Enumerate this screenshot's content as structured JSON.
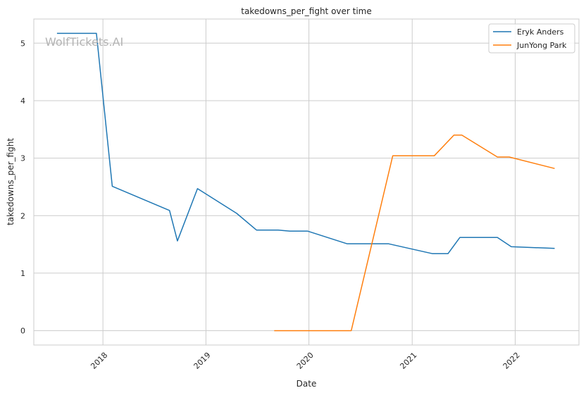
{
  "watermark": "WolfTickets.AI",
  "chart_data": {
    "type": "line",
    "title": "takedowns_per_fight over time",
    "xlabel": "Date",
    "ylabel": "takedowns_per_fight",
    "xlim": [
      "2017-05-01",
      "2022-08-15"
    ],
    "ylim": [
      -0.25,
      5.42
    ],
    "x_ticks": [
      "2018-01-01",
      "2019-01-01",
      "2020-01-01",
      "2021-01-01",
      "2022-01-01"
    ],
    "x_tick_labels": [
      "2018",
      "2019",
      "2020",
      "2021",
      "2022"
    ],
    "y_ticks": [
      0,
      1,
      2,
      3,
      4,
      5
    ],
    "y_tick_labels": [
      "0",
      "1",
      "2",
      "3",
      "4",
      "5"
    ],
    "grid": true,
    "legend_position": "top-right",
    "series": [
      {
        "name": "Eryk Anders",
        "color": "#1f77b4",
        "points": [
          [
            "2017-07-22",
            5.17
          ],
          [
            "2017-12-09",
            5.17
          ],
          [
            "2018-02-03",
            2.51
          ],
          [
            "2018-08-25",
            2.09
          ],
          [
            "2018-09-22",
            1.56
          ],
          [
            "2018-12-02",
            2.47
          ],
          [
            "2019-04-20",
            2.04
          ],
          [
            "2019-06-29",
            1.75
          ],
          [
            "2019-09-14",
            1.75
          ],
          [
            "2019-10-25",
            1.73
          ],
          [
            "2019-12-28",
            1.73
          ],
          [
            "2020-05-16",
            1.51
          ],
          [
            "2020-10-10",
            1.51
          ],
          [
            "2021-03-13",
            1.34
          ],
          [
            "2021-05-08",
            1.34
          ],
          [
            "2021-06-19",
            1.62
          ],
          [
            "2021-10-30",
            1.62
          ],
          [
            "2021-12-18",
            1.46
          ],
          [
            "2022-05-21",
            1.43
          ]
        ]
      },
      {
        "name": "JunYong Park",
        "color": "#ff7f0e",
        "points": [
          [
            "2019-08-31",
            0
          ],
          [
            "2020-05-30",
            0
          ],
          [
            "2020-10-24",
            3.04
          ],
          [
            "2021-03-20",
            3.04
          ],
          [
            "2021-05-29",
            3.4
          ],
          [
            "2021-06-26",
            3.4
          ],
          [
            "2021-10-30",
            3.02
          ],
          [
            "2021-12-11",
            3.02
          ],
          [
            "2022-05-21",
            2.82
          ]
        ]
      }
    ]
  }
}
